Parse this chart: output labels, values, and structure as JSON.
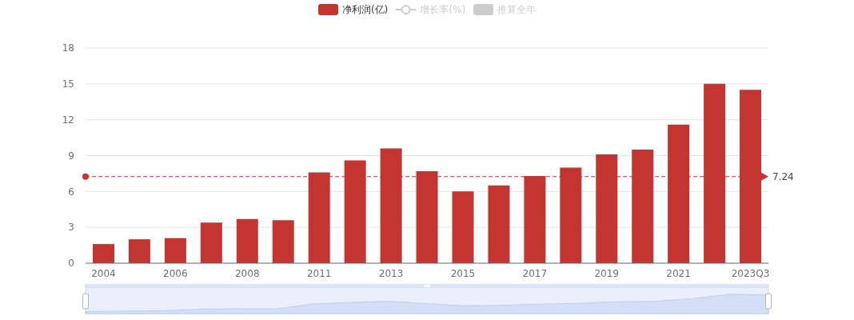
{
  "chart_data": {
    "type": "bar",
    "categories": [
      "2004",
      null,
      "2006",
      null,
      "2008",
      null,
      "2011",
      null,
      "2013",
      null,
      "2015",
      null,
      "2017",
      null,
      "2019",
      null,
      "2021",
      null,
      "2023Q3"
    ],
    "series": [
      {
        "name": "净利润(亿)",
        "color": "#c23531",
        "values": [
          1.6,
          2.0,
          2.1,
          3.4,
          3.7,
          3.6,
          7.6,
          8.6,
          9.6,
          7.7,
          6.0,
          6.5,
          7.3,
          8.0,
          9.1,
          9.5,
          11.6,
          15.0,
          14.5
        ]
      },
      {
        "name": "增长率(%)",
        "type": "line",
        "marker": "circle",
        "color": "#cccccc",
        "values": [
          null,
          null,
          null,
          null,
          null,
          null,
          null,
          null,
          null,
          null,
          null,
          null,
          null,
          null,
          null,
          null,
          null,
          null,
          null
        ]
      },
      {
        "name": "推算全年",
        "type": "bar",
        "color": "#cccccc",
        "values": [
          null,
          null,
          null,
          null,
          null,
          null,
          null,
          null,
          null,
          null,
          null,
          null,
          null,
          null,
          null,
          null,
          null,
          null,
          null
        ]
      }
    ],
    "ylim": [
      0,
      18
    ],
    "yticks": [
      0,
      3,
      6,
      9,
      12,
      15,
      18
    ],
    "grid": "y",
    "legend": "top",
    "ref_lines": [
      {
        "axis": "y",
        "value": 7.24,
        "label": "7.24",
        "color": "#c23531",
        "line_style": "dashed"
      }
    ]
  }
}
